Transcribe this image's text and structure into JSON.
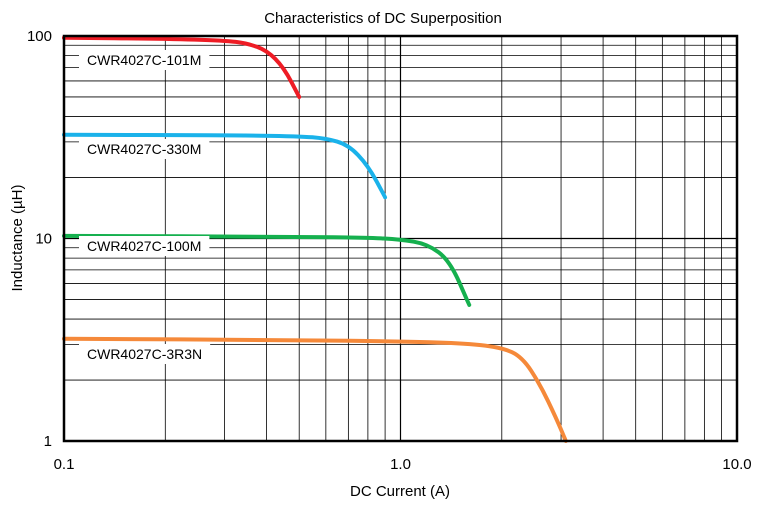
{
  "chart_data": {
    "type": "line",
    "title": "Characteristics of DC Superposition",
    "xlabel": "DC Current (A)",
    "ylabel": "Inductance (µH)",
    "xscale": "log",
    "yscale": "log",
    "xlim": [
      0.1,
      10
    ],
    "ylim": [
      1,
      100
    ],
    "grid": true,
    "x_ticks": [
      {
        "value": 0.1,
        "label": "0.1"
      },
      {
        "value": 1,
        "label": "1.0"
      },
      {
        "value": 10,
        "label": "10.0"
      }
    ],
    "y_ticks": [
      {
        "value": 1,
        "label": "1"
      },
      {
        "value": 10,
        "label": "10"
      },
      {
        "value": 100,
        "label": "100"
      }
    ],
    "series": [
      {
        "name": "CWR4027C-101M",
        "color": "#ee1c25",
        "points": [
          [
            0.1,
            98
          ],
          [
            0.2,
            97
          ],
          [
            0.3,
            95
          ],
          [
            0.35,
            92
          ],
          [
            0.4,
            85
          ],
          [
            0.45,
            70
          ],
          [
            0.5,
            50
          ]
        ]
      },
      {
        "name": "CWR4027C-330M",
        "color": "#1ab2ea",
        "points": [
          [
            0.1,
            32.5
          ],
          [
            0.3,
            32.4
          ],
          [
            0.5,
            32
          ],
          [
            0.6,
            31.2
          ],
          [
            0.7,
            29
          ],
          [
            0.8,
            23
          ],
          [
            0.9,
            16
          ]
        ]
      },
      {
        "name": "CWR4027C-100M",
        "color": "#15b04e",
        "points": [
          [
            0.1,
            10.3
          ],
          [
            0.5,
            10.2
          ],
          [
            0.8,
            10.1
          ],
          [
            1.0,
            9.9
          ],
          [
            1.2,
            9.4
          ],
          [
            1.4,
            7.8
          ],
          [
            1.6,
            4.7
          ]
        ]
      },
      {
        "name": "CWR4027C-3R3N",
        "color": "#f5893a",
        "points": [
          [
            0.1,
            3.2
          ],
          [
            0.5,
            3.15
          ],
          [
            1.0,
            3.1
          ],
          [
            1.5,
            3.05
          ],
          [
            2.0,
            2.9
          ],
          [
            2.3,
            2.6
          ],
          [
            2.6,
            1.9
          ],
          [
            2.9,
            1.3
          ],
          [
            3.1,
            1.0
          ]
        ]
      }
    ]
  }
}
